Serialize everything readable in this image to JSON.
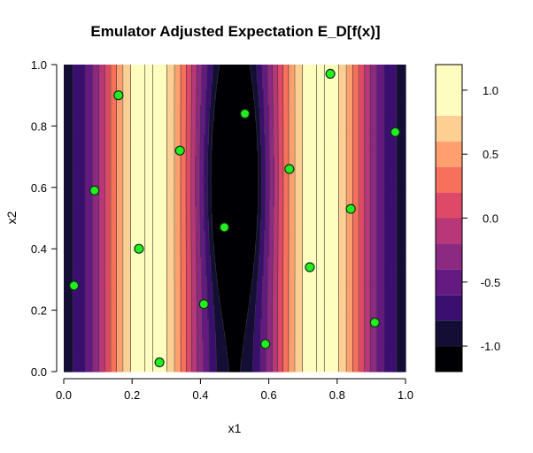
{
  "chart_data": {
    "type": "heatmap",
    "subtype": "filled-contour",
    "title": "Emulator Adjusted Expectation E_D[f(x)]",
    "xlabel": "x1",
    "ylabel": "x2",
    "xlim": [
      0,
      1
    ],
    "ylim": [
      0,
      1
    ],
    "x_ticks": [
      "0.0",
      "0.2",
      "0.4",
      "0.6",
      "0.8",
      "1.0"
    ],
    "y_ticks": [
      "0.0",
      "0.2",
      "0.4",
      "0.6",
      "0.8",
      "1.0"
    ],
    "x_tick_values": [
      0,
      0.2,
      0.4,
      0.6,
      0.8,
      1.0
    ],
    "y_tick_values": [
      0,
      0.2,
      0.4,
      0.6,
      0.8,
      1.0
    ],
    "levels": [
      -1.2,
      -1.0,
      -0.8,
      -0.6,
      -0.4,
      -0.2,
      0.0,
      0.2,
      0.4,
      0.6,
      0.8,
      1.0,
      1.2
    ],
    "colorbar_ticks": [
      "1.0",
      "0.5",
      "0.0",
      "-0.5",
      "-1.0"
    ],
    "colorbar_tick_values": [
      1.0,
      0.5,
      0.0,
      -0.5,
      -1.0
    ],
    "colors": [
      "#000004",
      "#140e36",
      "#3b0f70",
      "#641a80",
      "#8c2981",
      "#b73779",
      "#de4968",
      "#f7705c",
      "#fe9f6d",
      "#fecf92",
      "#fcfdbf"
    ],
    "design_points": [
      {
        "x1": 0.03,
        "x2": 0.28
      },
      {
        "x1": 0.09,
        "x2": 0.59
      },
      {
        "x1": 0.16,
        "x2": 0.9
      },
      {
        "x1": 0.22,
        "x2": 0.4
      },
      {
        "x1": 0.28,
        "x2": 0.03
      },
      {
        "x1": 0.34,
        "x2": 0.72
      },
      {
        "x1": 0.41,
        "x2": 0.22
      },
      {
        "x1": 0.47,
        "x2": 0.47
      },
      {
        "x1": 0.53,
        "x2": 0.84
      },
      {
        "x1": 0.59,
        "x2": 0.09
      },
      {
        "x1": 0.66,
        "x2": 0.66
      },
      {
        "x1": 0.72,
        "x2": 0.34
      },
      {
        "x1": 0.78,
        "x2": 0.97
      },
      {
        "x1": 0.84,
        "x2": 0.53
      },
      {
        "x1": 0.91,
        "x2": 0.16
      },
      {
        "x1": 0.97,
        "x2": 0.78
      }
    ],
    "point_color": "#22ee22",
    "grid": false,
    "legend": "colorbar right"
  }
}
